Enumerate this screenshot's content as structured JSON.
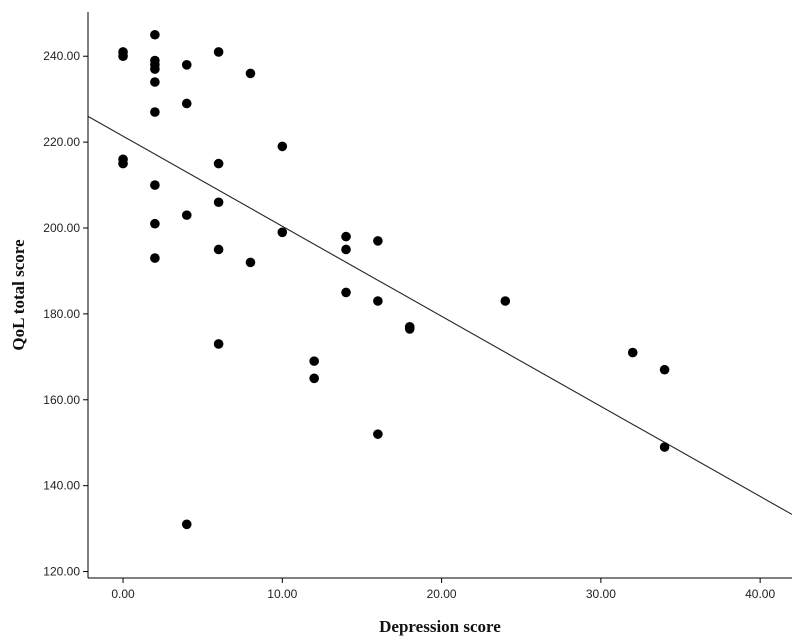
{
  "chart_data": {
    "type": "scatter",
    "title": "",
    "xlabel": "Depression score",
    "ylabel": "QoL total score",
    "xlim": [
      -2.2,
      42.0
    ],
    "ylim": [
      118.5,
      250.3
    ],
    "x_ticks": [
      0,
      10,
      20,
      30,
      40
    ],
    "x_tick_labels": [
      "0.00",
      "10.00",
      "20.00",
      "30.00",
      "40.00"
    ],
    "y_ticks": [
      120,
      140,
      160,
      180,
      200,
      220,
      240
    ],
    "y_tick_labels": [
      "120.00",
      "140.00",
      "160.00",
      "180.00",
      "200.00",
      "220.00",
      "240.00"
    ],
    "grid": false,
    "legend": "none",
    "point_color": "#000000",
    "series": [
      {
        "points": [
          [
            0,
            241
          ],
          [
            0,
            240
          ],
          [
            0,
            216
          ],
          [
            0,
            215
          ],
          [
            2,
            245
          ],
          [
            2,
            239
          ],
          [
            2,
            238
          ],
          [
            2,
            237
          ],
          [
            2,
            234
          ],
          [
            2,
            227
          ],
          [
            2,
            210
          ],
          [
            2,
            201
          ],
          [
            2,
            193
          ],
          [
            4,
            238
          ],
          [
            4,
            229
          ],
          [
            4,
            203
          ],
          [
            4,
            131
          ],
          [
            6,
            241
          ],
          [
            6,
            215
          ],
          [
            6,
            206
          ],
          [
            6,
            195
          ],
          [
            6,
            173
          ],
          [
            8,
            236
          ],
          [
            8,
            192
          ],
          [
            10,
            219
          ],
          [
            10,
            199
          ],
          [
            12,
            169
          ],
          [
            12,
            165
          ],
          [
            14,
            198
          ],
          [
            14,
            195
          ],
          [
            14,
            185
          ],
          [
            16,
            197
          ],
          [
            16,
            183
          ],
          [
            16,
            152
          ],
          [
            18,
            177
          ],
          [
            18,
            176.5
          ],
          [
            24,
            183
          ],
          [
            32,
            171
          ],
          [
            34,
            167
          ],
          [
            34,
            149
          ]
        ]
      }
    ],
    "fit_line": {
      "type": "linear",
      "x": [
        -2.2,
        42.0
      ],
      "y": [
        226.0,
        133.3
      ]
    }
  }
}
